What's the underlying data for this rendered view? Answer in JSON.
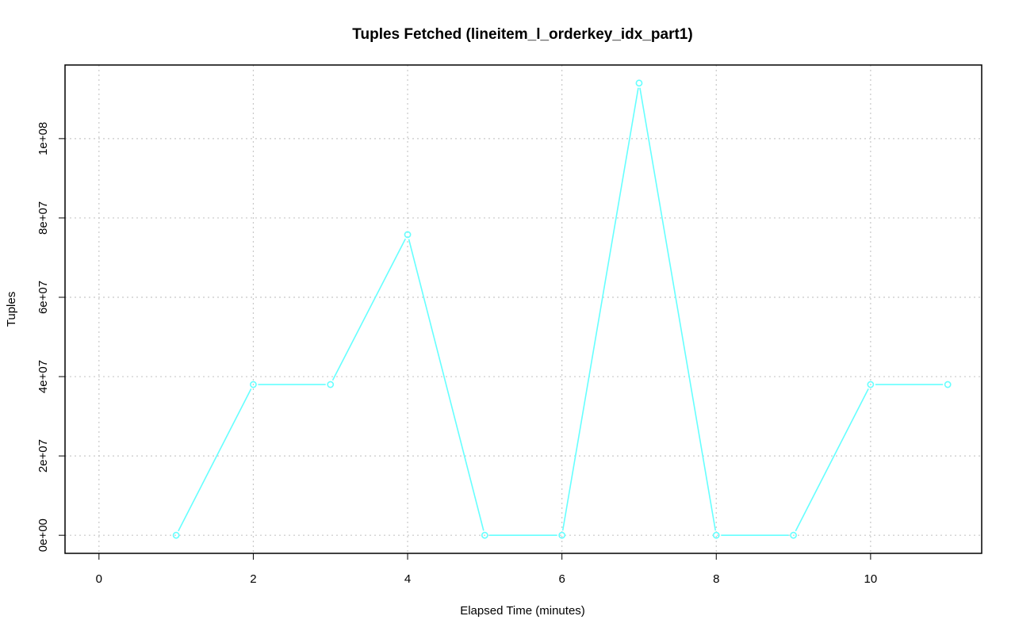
{
  "chart_data": {
    "type": "line",
    "title": "Tuples Fetched (lineitem_l_orderkey_idx_part1)",
    "xlabel": "Elapsed Time (minutes)",
    "ylabel": "Tuples",
    "xlim": [
      -0.44,
      11.44
    ],
    "ylim": [
      -4560000,
      118560000
    ],
    "x_ticks": [
      0,
      2,
      4,
      6,
      8,
      10
    ],
    "x_tick_labels": [
      "0",
      "2",
      "4",
      "6",
      "8",
      "10"
    ],
    "y_ticks": [
      0,
      20000000,
      40000000,
      60000000,
      80000000,
      100000000
    ],
    "y_tick_labels": [
      "0e+00",
      "2e+07",
      "4e+07",
      "6e+07",
      "8e+07",
      "1e+08"
    ],
    "grid": true,
    "series": [
      {
        "color": "#66ffff",
        "x": [
          1,
          2,
          3,
          4,
          5,
          6,
          7,
          8,
          9,
          10,
          11
        ],
        "y": [
          0,
          38000000,
          38000000,
          75800000,
          0,
          0,
          114000000,
          0,
          0,
          38000000,
          38000000
        ]
      }
    ]
  }
}
